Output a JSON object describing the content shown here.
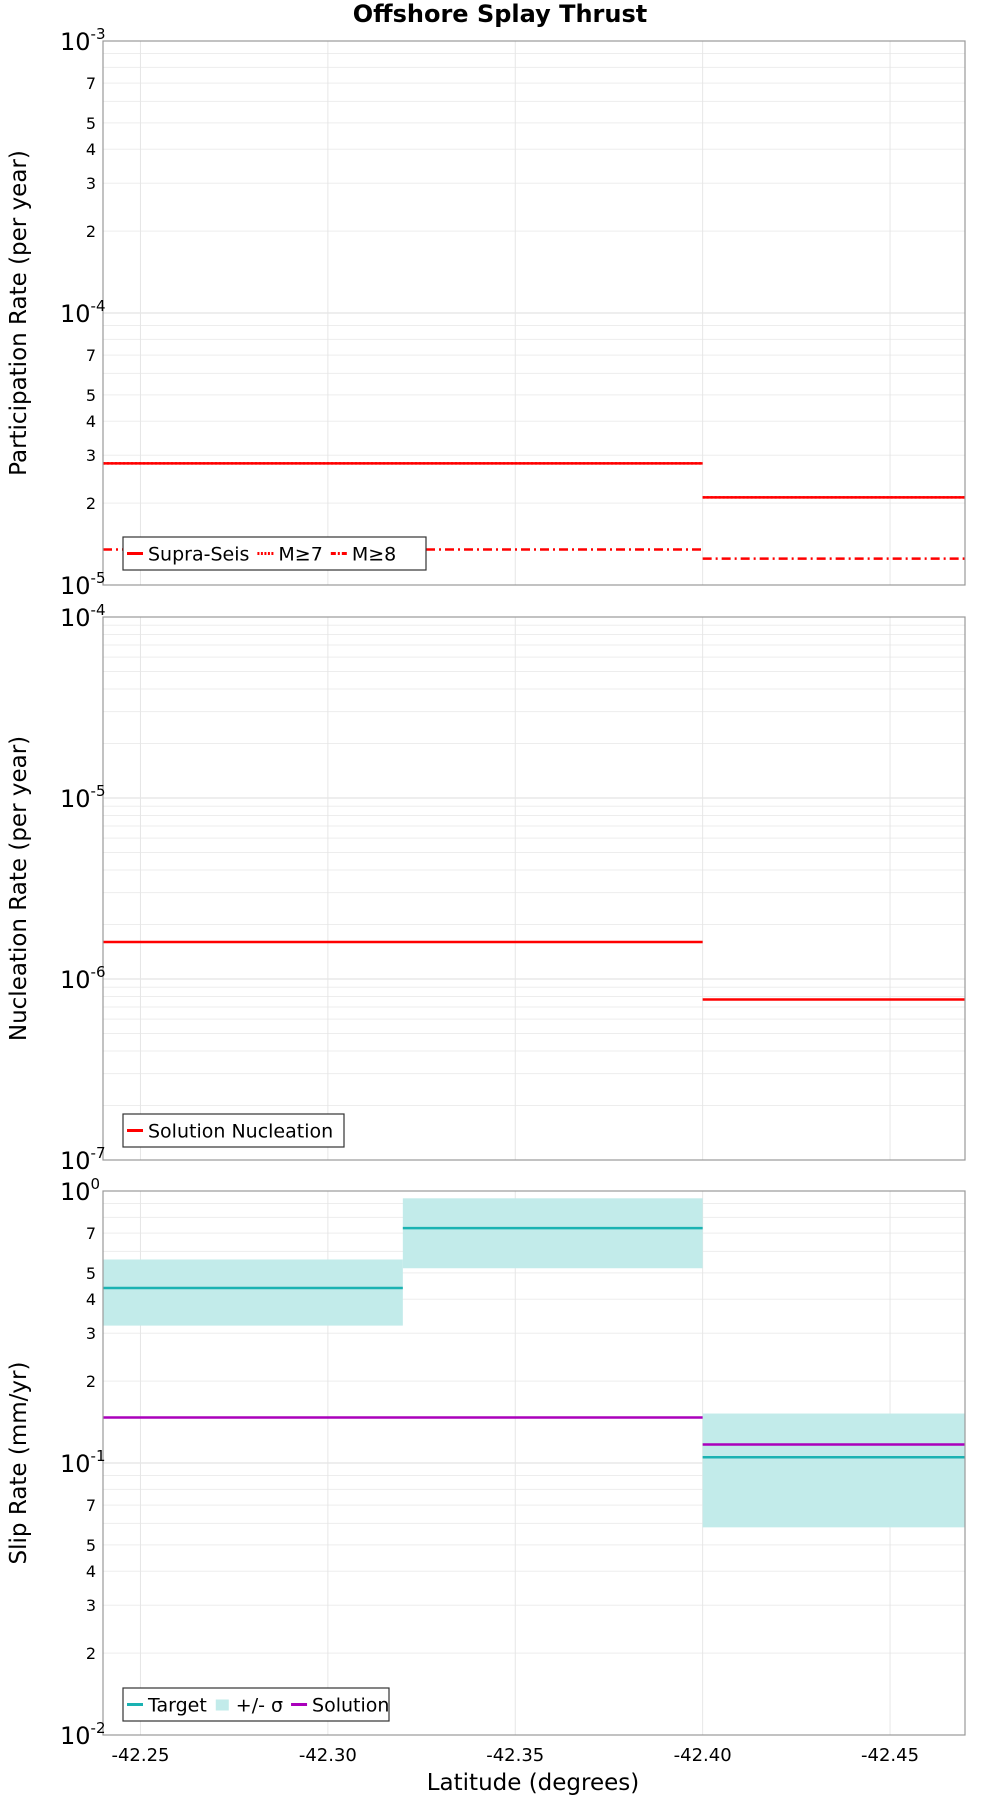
{
  "chart_data": {
    "title": "Offshore Splay Thrust",
    "xlabel": "Latitude (degrees)",
    "xlim": [
      -42.24,
      -42.47
    ],
    "xticks": [
      -42.25,
      -42.3,
      -42.35,
      -42.4,
      -42.45
    ],
    "xtick_labels": [
      "-42.25",
      "-42.30",
      "-42.35",
      "-42.40",
      "-42.45"
    ],
    "colors": {
      "red": "#ff0000",
      "cyan": "#1ab2b2",
      "cyan_band": "#c2ebea",
      "magenta": "#aa00bb"
    },
    "panels": [
      {
        "id": "participation",
        "type": "line",
        "yscale": "log",
        "ylabel": "Participation Rate (per year)",
        "ylim": [
          1e-05,
          0.001
        ],
        "decade_labels": [
          {
            "value": 0.001,
            "base": "10",
            "exp": "-3"
          },
          {
            "value": 0.0001,
            "base": "10",
            "exp": "-4"
          },
          {
            "value": 1e-05,
            "base": "10",
            "exp": "-5"
          }
        ],
        "minor_labels": [
          {
            "value": 0.0007,
            "label": "7"
          },
          {
            "value": 0.0005,
            "label": "5"
          },
          {
            "value": 0.0004,
            "label": "4"
          },
          {
            "value": 0.0003,
            "label": "3"
          },
          {
            "value": 0.0002,
            "label": "2"
          },
          {
            "value": 7e-05,
            "label": "7"
          },
          {
            "value": 5e-05,
            "label": "5"
          },
          {
            "value": 4e-05,
            "label": "4"
          },
          {
            "value": 3e-05,
            "label": "3"
          },
          {
            "value": 2e-05,
            "label": "2"
          }
        ],
        "series": [
          {
            "name": "Supra-Seis",
            "style": "solid",
            "color": "#ff0000",
            "segments": [
              {
                "x": [
                  -42.24,
                  -42.4
                ],
                "y": 2.8e-05
              },
              {
                "x": [
                  -42.4,
                  -42.47
                ],
                "y": 2.1e-05
              }
            ]
          },
          {
            "name": "M≥7",
            "style": "dotted",
            "color": "#ff0000",
            "segments": [
              {
                "x": [
                  -42.24,
                  -42.4
                ],
                "y": 2.8e-05
              },
              {
                "x": [
                  -42.4,
                  -42.47
                ],
                "y": 2.1e-05
              }
            ]
          },
          {
            "name": "M≥8",
            "style": "dashdot",
            "color": "#ff0000",
            "segments": [
              {
                "x": [
                  -42.24,
                  -42.4
                ],
                "y": 1.35e-05
              },
              {
                "x": [
                  -42.4,
                  -42.47
                ],
                "y": 1.25e-05
              }
            ]
          }
        ],
        "legend": {
          "location": "lower-left",
          "entries": [
            "Supra-Seis",
            "M≥7",
            "M≥8"
          ]
        }
      },
      {
        "id": "nucleation",
        "type": "line",
        "yscale": "log",
        "ylabel": "Nucleation Rate (per year)",
        "ylim": [
          1e-07,
          0.0001
        ],
        "decade_labels": [
          {
            "value": 0.0001,
            "base": "10",
            "exp": "-4"
          },
          {
            "value": 1e-05,
            "base": "10",
            "exp": "-5"
          },
          {
            "value": 1e-06,
            "base": "10",
            "exp": "-6"
          },
          {
            "value": 1e-07,
            "base": "10",
            "exp": "-7"
          }
        ],
        "minor_labels": [],
        "series": [
          {
            "name": "Solution Nucleation",
            "style": "solid",
            "color": "#ff0000",
            "segments": [
              {
                "x": [
                  -42.24,
                  -42.4
                ],
                "y": 1.6e-06
              },
              {
                "x": [
                  -42.4,
                  -42.47
                ],
                "y": 7.7e-07
              }
            ]
          }
        ],
        "legend": {
          "location": "lower-left",
          "entries": [
            "Solution Nucleation"
          ]
        }
      },
      {
        "id": "slip",
        "type": "line",
        "yscale": "log",
        "ylabel": "Slip Rate (mm/yr)",
        "ylim": [
          0.01,
          1
        ],
        "decade_labels": [
          {
            "value": 1,
            "base": "10",
            "exp": "0"
          },
          {
            "value": 0.1,
            "base": "10",
            "exp": "-1"
          },
          {
            "value": 0.01,
            "base": "10",
            "exp": "-2"
          }
        ],
        "minor_labels": [
          {
            "value": 0.7,
            "label": "7"
          },
          {
            "value": 0.5,
            "label": "5"
          },
          {
            "value": 0.4,
            "label": "4"
          },
          {
            "value": 0.3,
            "label": "3"
          },
          {
            "value": 0.2,
            "label": "2"
          },
          {
            "value": 0.07,
            "label": "7"
          },
          {
            "value": 0.05,
            "label": "5"
          },
          {
            "value": 0.04,
            "label": "4"
          },
          {
            "value": 0.03,
            "label": "3"
          },
          {
            "value": 0.02,
            "label": "2"
          }
        ],
        "bands": [
          {
            "name": "+/- σ",
            "color": "#c2ebea",
            "segments": [
              {
                "x": [
                  -42.24,
                  -42.32
                ],
                "y": [
                  0.32,
                  0.56
                ]
              },
              {
                "x": [
                  -42.32,
                  -42.4
                ],
                "y": [
                  0.52,
                  0.94
                ]
              },
              {
                "x": [
                  -42.4,
                  -42.47
                ],
                "y": [
                  0.058,
                  0.152
                ]
              }
            ]
          }
        ],
        "series": [
          {
            "name": "Target",
            "style": "solid",
            "color": "#1ab2b2",
            "segments": [
              {
                "x": [
                  -42.24,
                  -42.32
                ],
                "y": 0.44
              },
              {
                "x": [
                  -42.32,
                  -42.4
                ],
                "y": 0.73
              },
              {
                "x": [
                  -42.4,
                  -42.47
                ],
                "y": 0.105
              }
            ]
          },
          {
            "name": "Solution",
            "style": "solid",
            "color": "#aa00bb",
            "segments": [
              {
                "x": [
                  -42.24,
                  -42.4
                ],
                "y": 0.147
              },
              {
                "x": [
                  -42.4,
                  -42.47
                ],
                "y": 0.117
              }
            ]
          }
        ],
        "legend": {
          "location": "lower-left",
          "entries": [
            "Target",
            "+/- σ",
            "Solution"
          ]
        }
      }
    ]
  }
}
